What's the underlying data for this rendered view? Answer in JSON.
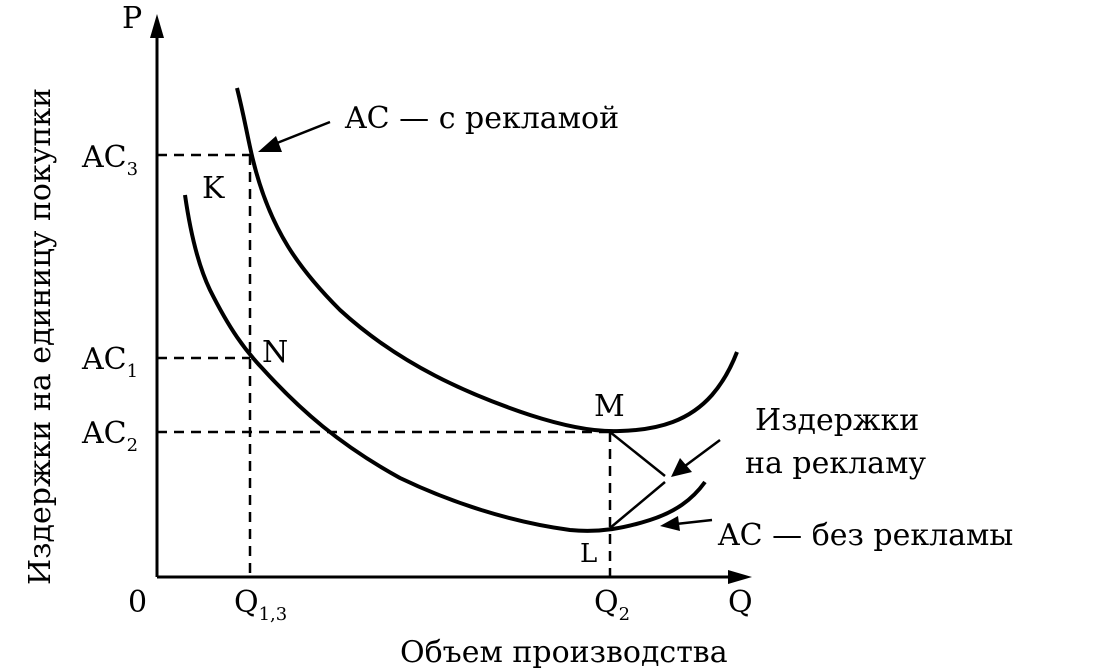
{
  "axes": {
    "y_symbol": "P",
    "x_symbol": "Q",
    "origin": "0",
    "y_title": "Издержки на единицу покупки",
    "x_title": "Объем производства"
  },
  "y_ticks": [
    {
      "base": "AC",
      "sub": "3"
    },
    {
      "base": "AC",
      "sub": "1"
    },
    {
      "base": "AC",
      "sub": "2"
    }
  ],
  "x_ticks": [
    {
      "base": "Q",
      "sub": "1,3"
    },
    {
      "base": "Q",
      "sub": "2"
    }
  ],
  "points": {
    "K": "K",
    "N": "N",
    "M": "M",
    "L": "L"
  },
  "curves": {
    "with_ads": "AC — с рекламой",
    "without_ads": "AC — без рекламы"
  },
  "annotation": {
    "line1": "Издержки",
    "line2": "на рекламу"
  },
  "colors": {
    "ink": "#000000",
    "background": "#ffffff"
  }
}
